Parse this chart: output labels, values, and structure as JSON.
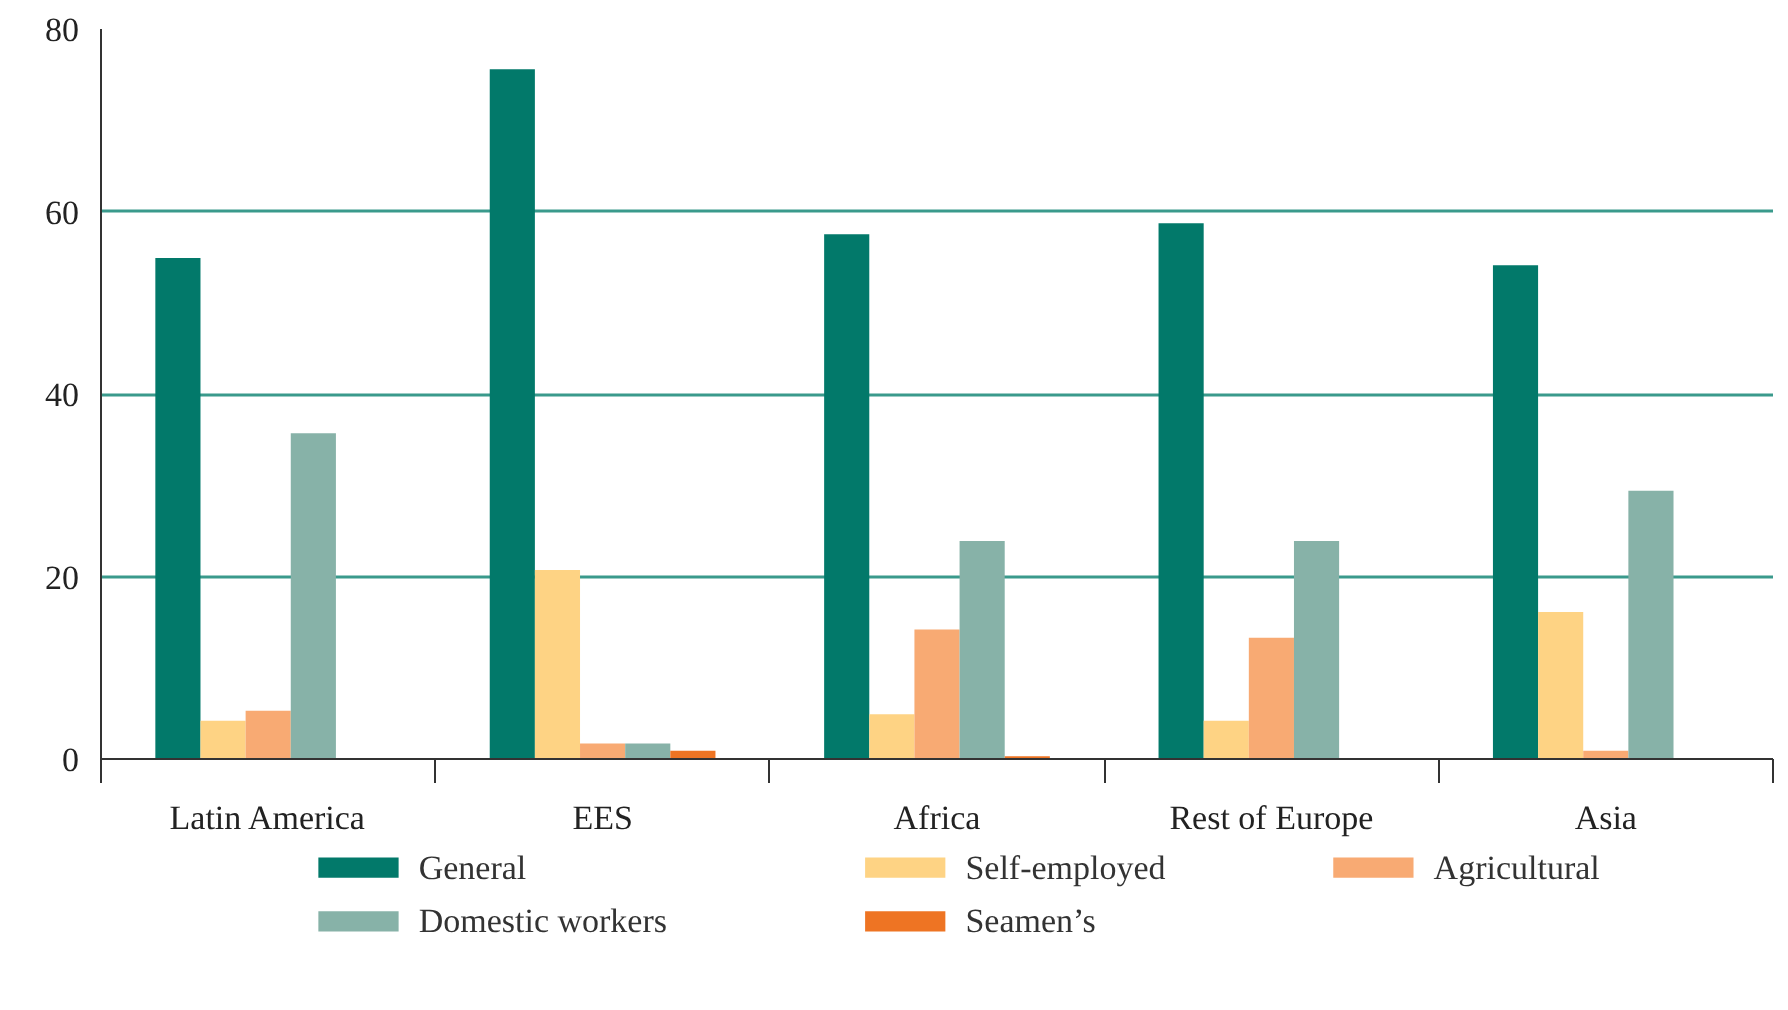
{
  "chart_data": {
    "type": "bar",
    "categories": [
      "Latin America",
      "EES",
      "Africa",
      "Rest of Europe",
      "Asia"
    ],
    "series": [
      {
        "name": "General",
        "color": "#02796a",
        "values": [
          54.9,
          75.6,
          57.5,
          58.7,
          54.1
        ]
      },
      {
        "name": "Self-employed",
        "color": "#fed384",
        "values": [
          4.2,
          20.7,
          4.9,
          4.2,
          16.1
        ]
      },
      {
        "name": "Agricultural",
        "color": "#f8aa73",
        "values": [
          5.3,
          1.7,
          14.2,
          13.3,
          0.9
        ]
      },
      {
        "name": "Domestic workers",
        "color": "#87b2a8",
        "values": [
          35.7,
          1.7,
          23.9,
          23.9,
          29.4
        ]
      },
      {
        "name": "Seamen’s",
        "color": "#ee7423",
        "values": [
          null,
          0.9,
          0.3,
          null,
          null
        ]
      }
    ],
    "ylim": [
      0,
      80
    ],
    "yticks": [
      0,
      20,
      40,
      60,
      80
    ],
    "grid": "y",
    "legend": "bottom"
  }
}
